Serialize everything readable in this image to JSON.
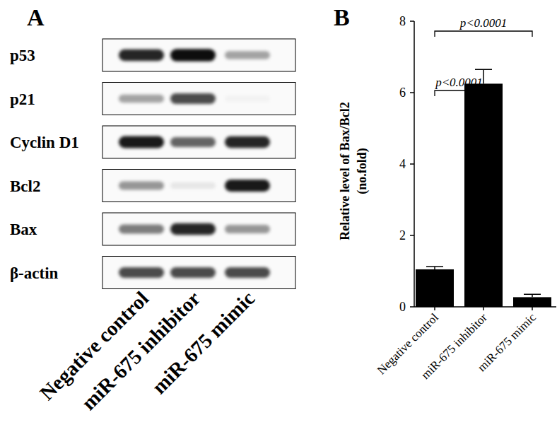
{
  "blot": {
    "panel_label": "A",
    "lanes": [
      "Negative control",
      "miR-675 inhibitor",
      "miR-675 mimic"
    ],
    "rows": [
      {
        "label": "p53",
        "intensity": [
          0.85,
          0.95,
          0.35
        ]
      },
      {
        "label": "p21",
        "intensity": [
          0.35,
          0.7,
          0.03
        ]
      },
      {
        "label": "Cyclin D1",
        "intensity": [
          0.9,
          0.6,
          0.85
        ]
      },
      {
        "label": "Bcl2",
        "intensity": [
          0.4,
          0.08,
          0.9
        ]
      },
      {
        "label": "Bax",
        "intensity": [
          0.5,
          0.85,
          0.4
        ]
      },
      {
        "label": "β-actin",
        "intensity": [
          0.7,
          0.7,
          0.7
        ]
      }
    ]
  },
  "chart_data": {
    "type": "bar",
    "panel_label": "B",
    "y_label": [
      "Relative level of Bax/Bcl2",
      "(no.fold)"
    ],
    "categories": [
      "Negative control",
      "miR-675 inhibitor",
      "miR-675 mimic"
    ],
    "values": [
      1.05,
      6.25,
      0.27
    ],
    "errors": [
      0.08,
      0.4,
      0.08
    ],
    "color": "#000000",
    "ylim": [
      0,
      8
    ],
    "yticks": [
      0,
      2,
      4,
      6,
      8
    ],
    "grid": false,
    "annotations": [
      {
        "text": "p<0.0001",
        "between": [
          "Negative control",
          "miR-675 inhibitor"
        ]
      },
      {
        "text": "p<0.0001",
        "between": [
          "Negative control",
          "miR-675 mimic"
        ]
      }
    ]
  }
}
